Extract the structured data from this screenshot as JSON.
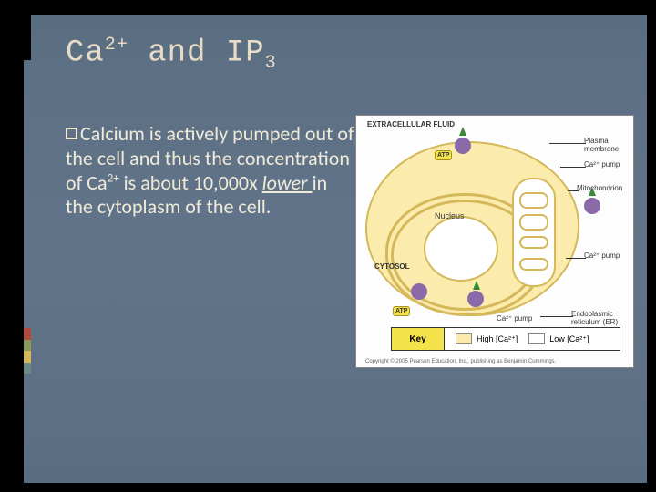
{
  "title": {
    "part1": "Ca",
    "sup1": "2+",
    "part2": " and IP",
    "sub1": "3"
  },
  "body": {
    "pre": "Calcium is actively pumped out of the cell and thus the concentration of Ca",
    "sup": "2+",
    "mid": " is about 10,000x ",
    "lower": "lower ",
    "post": "in the cytoplasm of the cell."
  },
  "diagram": {
    "labels": {
      "extracellular": "EXTRACELLULAR\nFLUID",
      "plasma": "Plasma membrane",
      "capump": "Ca²⁺ pump",
      "mito": "Mitochondrion",
      "nucleus": "Nucleus",
      "cytosol": "CYTOSOL",
      "er": "Endoplasmic reticulum (ER)",
      "atp": "ATP"
    },
    "legend": {
      "key": "Key",
      "high": "High [Ca²⁺]",
      "low": "Low [Ca²⁺]"
    },
    "copyright": "Copyright © 2005 Pearson Education, Inc., publishing as Benjamin Cummings.",
    "colors": {
      "cell_fill": "#fbecae",
      "cell_border": "#d4b85a",
      "pump": "#8a6aa8",
      "atp": "#f4e24a",
      "arrow": "#3a8a3a"
    }
  },
  "slide_bg": "#5f7388",
  "accent_stripes": [
    "#b04a3c",
    "#8a9a5b",
    "#d4b85a",
    "#6a8a8a"
  ]
}
